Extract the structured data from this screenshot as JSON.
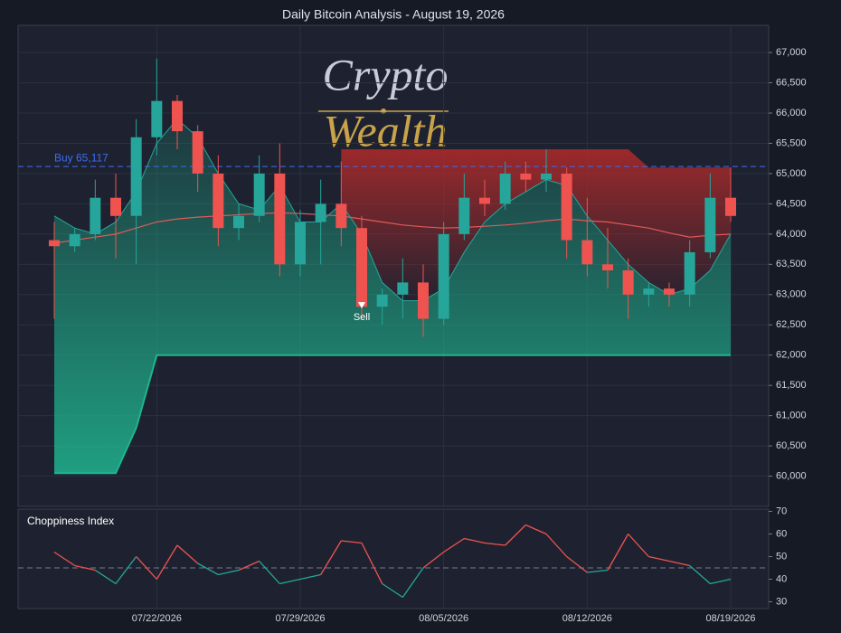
{
  "chart_data": {
    "type": "candlestick",
    "title": "Daily Bitcoin Analysis - August 19, 2026",
    "watermark": {
      "top": "Crypto",
      "bottom": "Wealth"
    },
    "categories": [
      "07/17/2026",
      "07/18/2026",
      "07/19/2026",
      "07/20/2026",
      "07/21/2026",
      "07/22/2026",
      "07/23/2026",
      "07/24/2026",
      "07/25/2026",
      "07/26/2026",
      "07/27/2026",
      "07/28/2026",
      "07/29/2026",
      "07/30/2026",
      "07/31/2026",
      "08/01/2026",
      "08/02/2026",
      "08/03/2026",
      "08/04/2026",
      "08/05/2026",
      "08/06/2026",
      "08/07/2026",
      "08/08/2026",
      "08/09/2026",
      "08/10/2026",
      "08/11/2026",
      "08/12/2026",
      "08/13/2026",
      "08/14/2026",
      "08/15/2026",
      "08/16/2026",
      "08/17/2026",
      "08/18/2026",
      "08/19/2026"
    ],
    "open": [
      63900,
      63800,
      64000,
      64600,
      64300,
      65600,
      66200,
      65700,
      65000,
      64100,
      64300,
      65000,
      63500,
      64200,
      64500,
      64100,
      62800,
      63000,
      63200,
      62600,
      64000,
      64600,
      64500,
      65000,
      64900,
      65000,
      63900,
      63500,
      63400,
      63000,
      63100,
      63000,
      63700,
      64600
    ],
    "high": [
      64200,
      64100,
      64900,
      65000,
      65900,
      66900,
      66300,
      65800,
      65300,
      64500,
      65300,
      65500,
      64400,
      64900,
      65200,
      64300,
      63100,
      63600,
      63500,
      64200,
      65000,
      64900,
      65200,
      65200,
      65400,
      65100,
      64600,
      64100,
      63600,
      63200,
      63200,
      63900,
      65000,
      65100
    ],
    "low": [
      62600,
      63700,
      63900,
      63600,
      63500,
      65300,
      65400,
      64700,
      63800,
      63900,
      64200,
      63300,
      63300,
      63500,
      63800,
      62600,
      62500,
      62600,
      62300,
      62500,
      63900,
      64300,
      64400,
      64700,
      64700,
      63600,
      63300,
      63100,
      62600,
      62800,
      62800,
      62800,
      63600,
      64200
    ],
    "close": [
      63800,
      64000,
      64600,
      64300,
      65600,
      66200,
      65700,
      65000,
      64100,
      64300,
      65000,
      63500,
      64200,
      64500,
      64100,
      62800,
      63000,
      63200,
      62600,
      64000,
      64600,
      64500,
      65000,
      64900,
      65000,
      63900,
      63500,
      63400,
      63000,
      63100,
      63000,
      63700,
      64600,
      64300
    ],
    "up_color": "#26a69a",
    "down_color": "#ef5350",
    "ma_fast": {
      "color": "#26a69a",
      "values": [
        64300,
        64100,
        64000,
        64200,
        64700,
        65500,
        65900,
        65600,
        65000,
        64500,
        64400,
        64800,
        64200,
        64200,
        64500,
        64000,
        63200,
        62900,
        62900,
        63100,
        63700,
        64200,
        64500,
        64700,
        64900,
        64800,
        64300,
        63900,
        63500,
        63200,
        63000,
        63100,
        63400,
        64000
      ]
    },
    "ma_slow": {
      "color": "#e05a5a",
      "values": [
        63850,
        63900,
        63950,
        64000,
        64100,
        64200,
        64250,
        64280,
        64300,
        64320,
        64340,
        64350,
        64340,
        64320,
        64300,
        64250,
        64200,
        64150,
        64120,
        64100,
        64110,
        64130,
        64150,
        64180,
        64220,
        64250,
        64220,
        64200,
        64150,
        64100,
        64020,
        63950,
        63980,
        64000
      ]
    },
    "support": {
      "color": "#1fb58f",
      "values": [
        60050,
        60050,
        60050,
        60050,
        60800,
        62000,
        62000,
        62000,
        62000,
        62000,
        62000,
        62000,
        62000,
        62000,
        62000,
        62000,
        62000,
        62000,
        62000,
        62000,
        62000,
        62000,
        62000,
        62000,
        62000,
        62000,
        62000,
        62000,
        62000,
        62000,
        62000,
        62000,
        62000,
        62000
      ]
    },
    "resistance": {
      "color": "#b22a2a",
      "values": [
        null,
        null,
        null,
        null,
        null,
        null,
        null,
        null,
        null,
        null,
        null,
        null,
        null,
        null,
        65400,
        65400,
        65400,
        65400,
        65400,
        65400,
        65400,
        65400,
        65400,
        65400,
        65400,
        65400,
        65400,
        65400,
        65400,
        65100,
        65100,
        65100,
        65100,
        65100
      ]
    },
    "buy_line": {
      "label": "Buy 65,117",
      "value": 65117,
      "color": "#3d6bf0"
    },
    "sell_signal": {
      "label": "Sell",
      "category": "08/01/2026",
      "value": 62800
    },
    "ylim": [
      59500,
      67450
    ],
    "yticks": [
      {
        "value": 60000,
        "label": "60,000"
      },
      {
        "value": 60500,
        "label": "60,500"
      },
      {
        "value": 61000,
        "label": "61,000"
      },
      {
        "value": 61500,
        "label": "61,500"
      },
      {
        "value": 62000,
        "label": "62,000"
      },
      {
        "value": 62500,
        "label": "62,500"
      },
      {
        "value": 63000,
        "label": "63,000"
      },
      {
        "value": 63500,
        "label": "63,500"
      },
      {
        "value": 64000,
        "label": "64,000"
      },
      {
        "value": 64500,
        "label": "64,500"
      },
      {
        "value": 65000,
        "label": "65,000"
      },
      {
        "value": 65500,
        "label": "65,500"
      },
      {
        "value": 66000,
        "label": "66,000"
      },
      {
        "value": 66500,
        "label": "66,500"
      },
      {
        "value": 67000,
        "label": "67,000"
      }
    ],
    "xticks": [
      "07/22/2026",
      "07/29/2026",
      "08/05/2026",
      "08/12/2026",
      "08/19/2026"
    ],
    "grid": true,
    "indicator": {
      "title": "Choppiness Index",
      "values": [
        52,
        46,
        44,
        38,
        50,
        40,
        55,
        47,
        42,
        44,
        48,
        38,
        40,
        42,
        57,
        56,
        38,
        32,
        45,
        52,
        58,
        56,
        55,
        64,
        60,
        50,
        43,
        44,
        60,
        50,
        48,
        46,
        38,
        40
      ],
      "threshold": 45,
      "above_color": "#ef5350",
      "below_color": "#26a69a",
      "ylim": [
        27,
        71
      ],
      "yticks": [
        30,
        40,
        50,
        60,
        70
      ]
    }
  }
}
